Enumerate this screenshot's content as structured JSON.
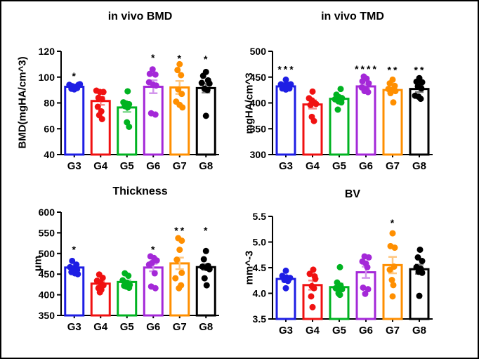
{
  "figure": {
    "background": "#ffffff",
    "border_color": "#000000",
    "group_colors": {
      "G3": "#1E1EE4",
      "G4": "#F01111",
      "G5": "#00B321",
      "G6": "#A428D8",
      "G7": "#FF8F00",
      "G8": "#000000"
    }
  },
  "chart_data": [
    {
      "type": "bar",
      "title": "in vivo BMD",
      "ylabel": "BMD(mgHA/cm^3)",
      "xlabel": "",
      "ylim": [
        40,
        120
      ],
      "yticks": [
        "40",
        "60",
        "80",
        "100",
        "120"
      ],
      "grid": "off",
      "legend": "none",
      "categories": [
        "G3",
        "G4",
        "G5",
        "G6",
        "G7",
        "G8"
      ],
      "colors": [
        "#1E1EE4",
        "#F01111",
        "#00B321",
        "#A428D8",
        "#FF8F00",
        "#000000"
      ],
      "means": [
        92.5,
        81.5,
        76.5,
        92.5,
        92,
        91.5
      ],
      "sem": [
        1.5,
        3,
        3.5,
        5,
        5,
        3.5
      ],
      "sig": [
        "*",
        "",
        "",
        "*",
        "*",
        "*"
      ],
      "sig_y": [
        101,
        0,
        0,
        115,
        114.5,
        114
      ],
      "points": [
        [
          [
            -7,
            94
          ],
          [
            -3,
            93
          ],
          [
            2,
            92.5
          ],
          [
            6,
            94
          ],
          [
            -4,
            91
          ],
          [
            0,
            90.5
          ],
          [
            4,
            91.5
          ],
          [
            8,
            94.5
          ]
        ],
        [
          [
            -6,
            89.5
          ],
          [
            -1,
            88.5
          ],
          [
            4,
            88.5
          ],
          [
            -3,
            84
          ],
          [
            2,
            83
          ],
          [
            -4,
            77
          ],
          [
            1,
            73.5
          ],
          [
            -2,
            70.5
          ],
          [
            2,
            67.5
          ]
        ],
        [
          [
            1,
            89
          ],
          [
            -5,
            80.5
          ],
          [
            -1,
            79.5
          ],
          [
            3,
            79
          ],
          [
            -3,
            77.5
          ],
          [
            1,
            76.5
          ],
          [
            0,
            65
          ],
          [
            3,
            61.5
          ]
        ],
        [
          [
            -1,
            106
          ],
          [
            -5,
            102.5
          ],
          [
            3,
            102
          ],
          [
            -6,
            96
          ],
          [
            0,
            94
          ],
          [
            4,
            93.5
          ],
          [
            -3,
            72
          ],
          [
            3,
            71
          ]
        ],
        [
          [
            0,
            110
          ],
          [
            -3,
            105.5
          ],
          [
            2,
            101.5
          ],
          [
            -2,
            90.5
          ],
          [
            3,
            87
          ],
          [
            -5,
            81
          ],
          [
            0,
            78.5
          ],
          [
            4,
            76.5
          ]
        ],
        [
          [
            0,
            104
          ],
          [
            -4,
            101
          ],
          [
            3,
            97.5
          ],
          [
            -6,
            95.5
          ],
          [
            5,
            95
          ],
          [
            -2,
            91
          ],
          [
            2,
            90
          ],
          [
            0,
            70
          ]
        ]
      ]
    },
    {
      "type": "bar",
      "title": "in vivo TMD",
      "ylabel": "mgHA/cm^3",
      "xlabel": "",
      "ylim": [
        300,
        500
      ],
      "yticks": [
        "300",
        "350",
        "400",
        "450",
        "500"
      ],
      "grid": "off",
      "legend": "none",
      "categories": [
        "G3",
        "G4",
        "G5",
        "G6",
        "G7",
        "G8"
      ],
      "colors": [
        "#1E1EE4",
        "#F01111",
        "#00B321",
        "#A428D8",
        "#FF8F00",
        "#000000"
      ],
      "means": [
        432,
        397,
        408,
        432,
        425,
        427
      ],
      "sem": [
        3,
        8,
        6,
        4,
        5,
        6
      ],
      "sig": [
        "***",
        "",
        "",
        "****",
        "**",
        "**"
      ],
      "sig_y": [
        465,
        0,
        0,
        466,
        464,
        464
      ],
      "points": [
        [
          [
            0,
            445
          ],
          [
            -7,
            436
          ],
          [
            -2,
            434
          ],
          [
            3,
            435
          ],
          [
            7,
            436
          ],
          [
            -5,
            428
          ],
          [
            0,
            426
          ],
          [
            5,
            428
          ]
        ],
        [
          [
            0,
            422
          ],
          [
            -5,
            409
          ],
          [
            -1,
            405
          ],
          [
            2,
            401
          ],
          [
            5,
            398
          ],
          [
            -3,
            396
          ],
          [
            -1,
            373
          ],
          [
            2,
            365
          ]
        ],
        [
          [
            2,
            427
          ],
          [
            -4,
            416
          ],
          [
            0,
            411
          ],
          [
            4,
            409
          ],
          [
            -6,
            407
          ],
          [
            -1,
            403
          ],
          [
            3,
            401
          ],
          [
            -2,
            387
          ]
        ],
        [
          [
            -3,
            451
          ],
          [
            1,
            447
          ],
          [
            -5,
            442
          ],
          [
            4,
            438
          ],
          [
            -6,
            430
          ],
          [
            0,
            427
          ],
          [
            -2,
            423
          ],
          [
            3,
            421
          ]
        ],
        [
          [
            0,
            445
          ],
          [
            -4,
            438
          ],
          [
            3,
            433
          ],
          [
            -6,
            427
          ],
          [
            -1,
            425
          ],
          [
            4,
            423
          ],
          [
            -3,
            419
          ],
          [
            1,
            401
          ]
        ],
        [
          [
            0,
            448
          ],
          [
            -4,
            441
          ],
          [
            4,
            440
          ],
          [
            -2,
            432
          ],
          [
            3,
            428
          ],
          [
            -6,
            414
          ],
          [
            -1,
            412
          ],
          [
            2,
            408
          ]
        ]
      ]
    },
    {
      "type": "bar",
      "title": "Thickness",
      "ylabel": "μm",
      "xlabel": "",
      "ylim": [
        350,
        600
      ],
      "yticks": [
        "350",
        "400",
        "450",
        "500",
        "550",
        "600"
      ],
      "grid": "off",
      "legend": "none",
      "categories": [
        "G3",
        "G4",
        "G5",
        "G6",
        "G7",
        "G8"
      ],
      "colors": [
        "#1E1EE4",
        "#F01111",
        "#00B321",
        "#A428D8",
        "#FF8F00",
        "#000000"
      ],
      "means": [
        466,
        427,
        431,
        466,
        476,
        467
      ],
      "sem": [
        5,
        5,
        4,
        9,
        14,
        7
      ],
      "sig": [
        "*",
        "",
        "",
        "*",
        "**",
        "*"
      ],
      "sig_y": [
        510,
        0,
        0,
        510,
        556,
        556
      ],
      "points": [
        [
          [
            -3,
            482
          ],
          [
            3,
            473
          ],
          [
            -6,
            467
          ],
          [
            0,
            464
          ],
          [
            4,
            460
          ],
          [
            -4,
            455
          ],
          [
            1,
            452
          ],
          [
            5,
            450
          ]
        ],
        [
          [
            -2,
            449
          ],
          [
            3,
            441
          ],
          [
            -5,
            434
          ],
          [
            0,
            429
          ],
          [
            4,
            423
          ],
          [
            -3,
            416
          ],
          [
            1,
            412
          ],
          [
            -1,
            406
          ]
        ],
        [
          [
            -3,
            452
          ],
          [
            2,
            446
          ],
          [
            -6,
            435
          ],
          [
            0,
            429
          ],
          [
            4,
            424
          ],
          [
            -4,
            422
          ],
          [
            -1,
            420
          ],
          [
            3,
            417
          ]
        ],
        [
          [
            -4,
            493
          ],
          [
            1,
            489
          ],
          [
            5,
            483
          ],
          [
            -2,
            477
          ],
          [
            -6,
            473
          ],
          [
            2,
            452
          ],
          [
            -3,
            420
          ],
          [
            3,
            416
          ]
        ],
        [
          [
            -2,
            537
          ],
          [
            3,
            531
          ],
          [
            0,
            509
          ],
          [
            -4,
            485
          ],
          [
            3,
            453
          ],
          [
            -6,
            440
          ],
          [
            2,
            423
          ],
          [
            -1,
            416
          ]
        ],
        [
          [
            0,
            506
          ],
          [
            -3,
            486
          ],
          [
            3,
            470
          ],
          [
            -5,
            468
          ],
          [
            1,
            465
          ],
          [
            5,
            462
          ],
          [
            -2,
            440
          ],
          [
            1,
            423
          ]
        ]
      ]
    },
    {
      "type": "bar",
      "title": "BV",
      "ylabel": "mm^-3",
      "xlabel": "",
      "ylim": [
        3.5,
        5.5
      ],
      "yticks": [
        "3.5",
        "4.0",
        "4.5",
        "5.0",
        "5.5"
      ],
      "grid": "off",
      "legend": "none",
      "categories": [
        "G3",
        "G4",
        "G5",
        "G6",
        "G7",
        "G8"
      ],
      "colors": [
        "#1E1EE4",
        "#F01111",
        "#00B321",
        "#A428D8",
        "#FF8F00",
        "#000000"
      ],
      "means": [
        4.28,
        4.16,
        4.12,
        4.41,
        4.55,
        4.47
      ],
      "sem": [
        0.05,
        0.09,
        0.07,
        0.11,
        0.16,
        0.09
      ],
      "sig": [
        "",
        "",
        "",
        "",
        "*",
        ""
      ],
      "sig_y": [
        0,
        0,
        0,
        0,
        5.38,
        0
      ],
      "points": [
        [
          [
            0,
            4.44
          ],
          [
            -5,
            4.34
          ],
          [
            1,
            4.31
          ],
          [
            6,
            4.3
          ],
          [
            -2,
            4.26
          ],
          [
            3,
            4.24
          ],
          [
            0,
            4.1
          ]
        ],
        [
          [
            1,
            4.46
          ],
          [
            -4,
            4.38
          ],
          [
            3,
            4.33
          ],
          [
            4,
            4.28
          ],
          [
            -1,
            4.14
          ],
          [
            2,
            4.1
          ],
          [
            -2,
            3.94
          ],
          [
            0,
            3.73
          ]
        ],
        [
          [
            1,
            4.51
          ],
          [
            -3,
            4.21
          ],
          [
            2,
            4.15
          ],
          [
            -5,
            4.1
          ],
          [
            4,
            4.08
          ],
          [
            0,
            4.07
          ],
          [
            -1,
            4.0
          ],
          [
            1,
            3.97
          ]
        ],
        [
          [
            -2,
            4.72
          ],
          [
            4,
            4.7
          ],
          [
            -5,
            4.62
          ],
          [
            0,
            4.58
          ],
          [
            2,
            4.51
          ],
          [
            -4,
            4.11
          ],
          [
            3,
            4.08
          ],
          [
            -1,
            3.99
          ]
        ],
        [
          [
            0,
            5.17
          ],
          [
            -3,
            4.92
          ],
          [
            3,
            4.89
          ],
          [
            2,
            4.52
          ],
          [
            -4,
            4.46
          ],
          [
            -1,
            4.26
          ],
          [
            1,
            4.16
          ],
          [
            0,
            3.94
          ]
        ],
        [
          [
            1,
            4.85
          ],
          [
            -2,
            4.7
          ],
          [
            4,
            4.63
          ],
          [
            -4,
            4.51
          ],
          [
            2,
            4.48
          ],
          [
            -1,
            4.42
          ],
          [
            4,
            4.4
          ],
          [
            0,
            3.95
          ]
        ]
      ]
    }
  ]
}
